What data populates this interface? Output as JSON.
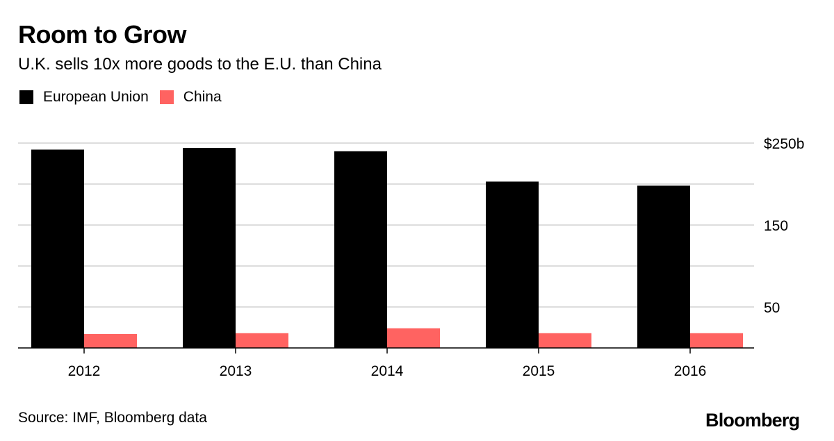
{
  "header": {
    "title": "Room to Grow",
    "subtitle": "U.K. sells 10x more goods to the E.U. than China"
  },
  "footer": {
    "source": "Source: IMF, Bloomberg data",
    "logo": "Bloomberg"
  },
  "chart_data": {
    "type": "bar",
    "title": "Room to Grow",
    "subtitle": "U.K. sells 10x more goods to the E.U. than China",
    "xlabel": "",
    "ylabel": "",
    "categories": [
      "2012",
      "2013",
      "2014",
      "2015",
      "2016"
    ],
    "series": [
      {
        "name": "European Union",
        "color": "#000000",
        "values": [
          242,
          244,
          240,
          203,
          198
        ]
      },
      {
        "name": "China",
        "color": "#ff6361",
        "values": [
          17,
          18,
          24,
          18,
          18
        ]
      }
    ],
    "ylim": [
      0,
      250
    ],
    "yticks": [
      0,
      50,
      100,
      150,
      200,
      250
    ],
    "ytick_labels": [
      {
        "value": 250,
        "label": "$250b"
      },
      {
        "value": 150,
        "label": "150"
      },
      {
        "value": 50,
        "label": "50"
      }
    ],
    "grid": true,
    "y_axis_position": "right",
    "legend_position": "top-left",
    "grid_color": "#dddddd"
  }
}
